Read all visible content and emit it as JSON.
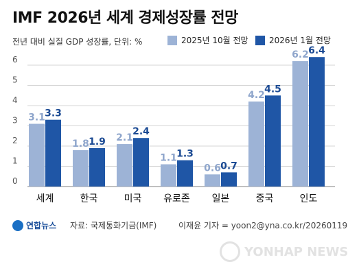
{
  "title": "IMF 2026년 세계 경제성장률 전망",
  "subtitle": "전년 대비 실질 GDP 성장률, 단위: %",
  "legend": [
    {
      "label": "2025년 10월 전망",
      "color": "#9db3d6"
    },
    {
      "label": "2026년 1월 전망",
      "color": "#1f56a6"
    }
  ],
  "footer": {
    "logo": "연합뉴스",
    "source": "자료: 국제통화기금(IMF)",
    "credit": "이재윤 기자 = yoon2@yna.co.kr/20260119",
    "watermark": "YONHAP NEWS"
  },
  "chart_data": {
    "type": "bar",
    "title": "IMF 2026년 세계 경제성장률 전망",
    "subtitle": "전년 대비 실질 GDP 성장률, 단위: %",
    "categories": [
      "세계",
      "한국",
      "미국",
      "유로존",
      "일본",
      "중국",
      "인도"
    ],
    "series": [
      {
        "name": "2025년 10월 전망",
        "color": "#9db3d6",
        "label_color": "#8fa6cc",
        "values": [
          3.1,
          1.8,
          2.1,
          1.1,
          0.6,
          4.2,
          6.2
        ]
      },
      {
        "name": "2026년 1월 전망",
        "color": "#1f56a6",
        "label_color": "#1b4a93",
        "values": [
          3.3,
          1.9,
          2.4,
          1.3,
          0.7,
          4.5,
          6.4
        ]
      }
    ],
    "y_ticks": [
      "0",
      "1",
      "2",
      "3",
      "4",
      "5",
      "6"
    ],
    "ylim": [
      0,
      6.5
    ],
    "grid": true,
    "legend_position": "top-right"
  }
}
